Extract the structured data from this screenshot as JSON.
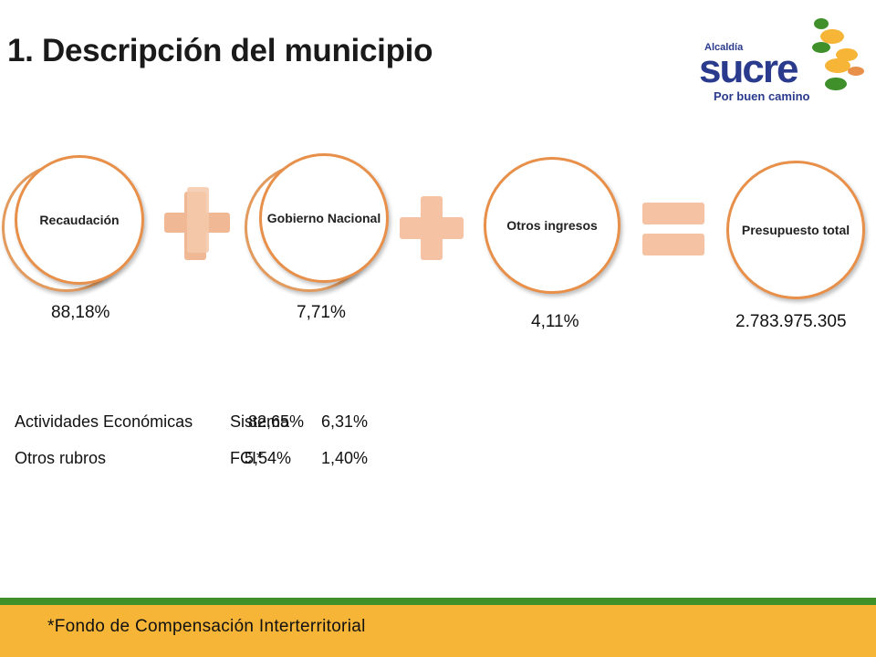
{
  "title": "1. Descripción del municipio",
  "logo": {
    "small_text": "Alcaldía",
    "name": "sucre",
    "slogan": "Por buen camino",
    "colors": [
      "#2a3a8c",
      "#f6b537",
      "#3f8f2b",
      "#e8904a"
    ]
  },
  "flow": {
    "items": [
      {
        "label": "Recaudación",
        "value": "88,18%"
      },
      {
        "label": "Gobierno Nacional",
        "value": "7,71%"
      },
      {
        "label": "Otros ingresos",
        "value": "4,11%"
      },
      {
        "label": "Presupuesto total",
        "value": "2.783.975.305"
      }
    ],
    "operators": [
      "plus-icon",
      "plus-icon",
      "equals-icon"
    ]
  },
  "breakdown": {
    "rows": [
      {
        "rubro": "Actividades Económicas",
        "rubro_pct": "82,65%",
        "fuente": "Sistema",
        "fuente_pct": "6,31%"
      },
      {
        "rubro": "Otros rubros",
        "rubro_pct": "5,54%",
        "fuente": "FCI*",
        "fuente_pct": "1,40%"
      }
    ]
  },
  "footnote": "*Fondo de Compensación Interterritorial",
  "colors": {
    "circle_border": "#e8904a",
    "operator": "#f5c2a4",
    "green_bar": "#3f8f2b",
    "footer": "#f6b537"
  }
}
